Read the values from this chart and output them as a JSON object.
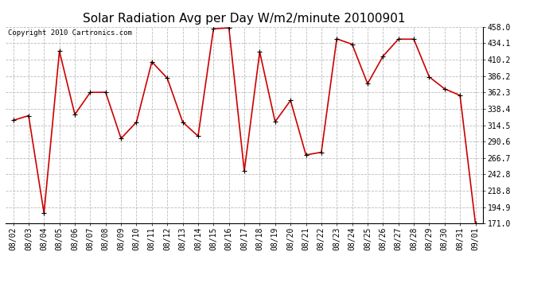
{
  "title": "Solar Radiation Avg per Day W/m2/minute 20100901",
  "copyright": "Copyright 2010 Cartronics.com",
  "x_labels": [
    "08/02",
    "08/03",
    "08/04",
    "08/05",
    "08/06",
    "08/07",
    "08/08",
    "08/09",
    "08/10",
    "08/11",
    "08/12",
    "08/13",
    "08/14",
    "08/15",
    "08/16",
    "08/17",
    "08/18",
    "08/19",
    "08/20",
    "08/21",
    "08/22",
    "08/23",
    "08/24",
    "08/25",
    "08/26",
    "08/27",
    "08/28",
    "08/29",
    "08/30",
    "08/31",
    "09/01"
  ],
  "y_values": [
    321.5,
    328.4,
    186.0,
    422.5,
    330.0,
    362.3,
    362.5,
    295.0,
    319.0,
    407.0,
    383.0,
    319.0,
    298.5,
    455.0,
    456.5,
    247.5,
    421.5,
    319.5,
    350.5,
    271.0,
    275.0,
    440.5,
    432.5,
    375.0,
    415.0,
    440.0,
    440.0,
    385.0,
    367.5,
    358.0,
    171.0
  ],
  "line_color": "#cc0000",
  "marker_color": "#000000",
  "bg_color": "#ffffff",
  "plot_bg_color": "#ffffff",
  "grid_color": "#bbbbbb",
  "title_fontsize": 11,
  "copyright_fontsize": 6.5,
  "tick_fontsize": 7,
  "y_min": 171.0,
  "y_max": 458.0,
  "y_ticks": [
    171.0,
    194.9,
    218.8,
    242.8,
    266.7,
    290.6,
    314.5,
    338.4,
    362.3,
    386.2,
    410.2,
    434.1,
    458.0
  ]
}
